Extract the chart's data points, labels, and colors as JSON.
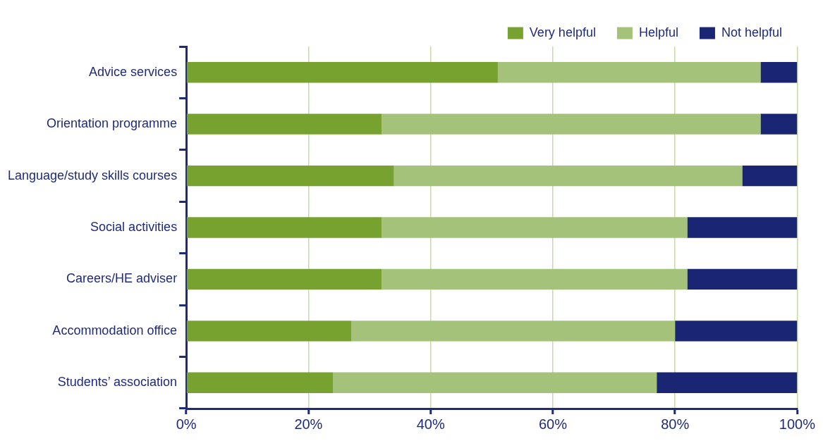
{
  "chart_data": {
    "type": "bar",
    "orientation": "horizontal",
    "stacked": true,
    "categories": [
      "Advice services",
      "Orientation programme",
      "Language/study skills courses",
      "Social activities",
      "Careers/HE adviser",
      "Accommodation office",
      "Students’ association"
    ],
    "series": [
      {
        "name": "Very helpful",
        "color": "#78a22f",
        "values": [
          51,
          32,
          34,
          32,
          32,
          27,
          24
        ]
      },
      {
        "name": "Helpful",
        "color": "#a5c27a",
        "values": [
          43,
          62,
          57,
          50,
          50,
          53,
          53
        ]
      },
      {
        "name": "Not helpful",
        "color": "#1a2674",
        "values": [
          6,
          6,
          9,
          18,
          18,
          20,
          23
        ]
      }
    ],
    "xlim": [
      0,
      100
    ],
    "xticks": [
      {
        "value": 0,
        "label": "0%"
      },
      {
        "value": 20,
        "label": "20%"
      },
      {
        "value": 40,
        "label": "40%"
      },
      {
        "value": 60,
        "label": "60%"
      },
      {
        "value": 80,
        "label": "80%"
      },
      {
        "value": 100,
        "label": "100%"
      }
    ],
    "grid": "x",
    "legend": "top right"
  }
}
